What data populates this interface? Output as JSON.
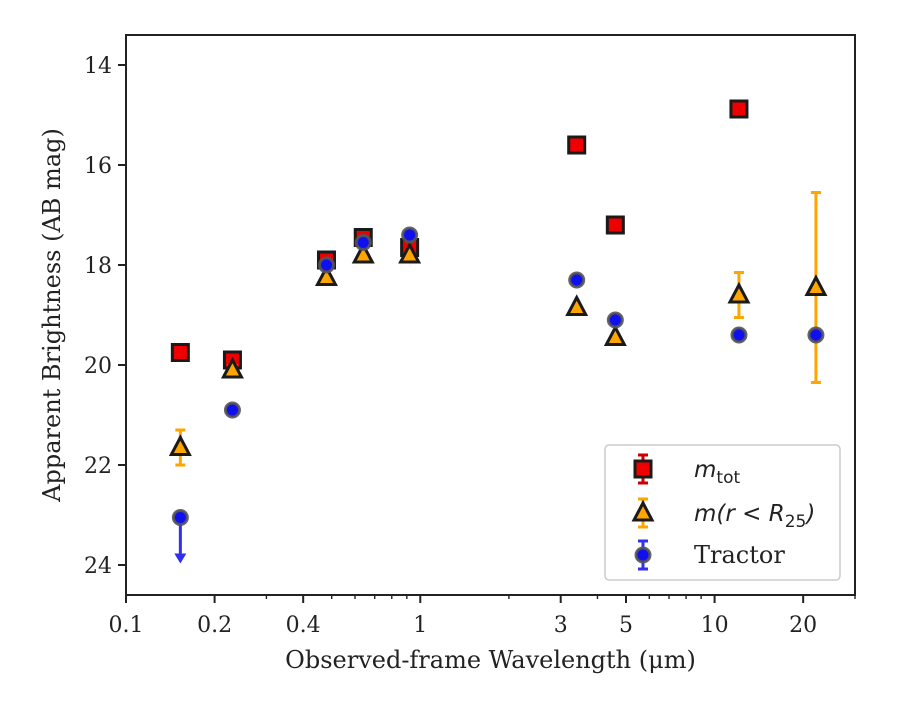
{
  "chart_data": {
    "type": "scatter",
    "xlabel": "Observed-frame Wavelength (μm)",
    "ylabel": "Apparent Brightness (AB mag)",
    "xscale": "log",
    "xlim": [
      0.1,
      30
    ],
    "ylim": [
      24.6,
      13.4
    ],
    "y_inverted": true,
    "grid": false,
    "legend_position": "lower-right",
    "x_ticks": [
      0.1,
      0.2,
      0.4,
      1,
      3,
      5,
      10,
      20
    ],
    "x_tick_labels": [
      "0.1",
      "0.2",
      "0.4",
      "1",
      "3",
      "5",
      "10",
      "20"
    ],
    "y_ticks": [
      14,
      16,
      18,
      20,
      22,
      24
    ],
    "y_tick_labels": [
      "14",
      "16",
      "18",
      "20",
      "22",
      "24"
    ],
    "series": [
      {
        "name": "m_tot",
        "legend_label": {
          "base": "m",
          "sub": "tot"
        },
        "marker": "square",
        "color": "#ee0000",
        "error_color": "#cc0000",
        "points": [
          {
            "x": 0.153,
            "y": 19.75,
            "err": 0.06
          },
          {
            "x": 0.23,
            "y": 19.9,
            "err": 0.06
          },
          {
            "x": 0.48,
            "y": 17.9,
            "err": 0.06
          },
          {
            "x": 0.64,
            "y": 17.45,
            "err": 0.06
          },
          {
            "x": 0.92,
            "y": 17.65,
            "err": 0.06
          },
          {
            "x": 3.4,
            "y": 15.6,
            "err": 0.05
          },
          {
            "x": 4.6,
            "y": 17.2,
            "err": 0.05
          },
          {
            "x": 12.1,
            "y": 14.88,
            "err": 0.05
          }
        ]
      },
      {
        "name": "m(r < R_25)",
        "legend_label": {
          "base": "m(r < R",
          "sub": "25",
          "tail": ")"
        },
        "marker": "triangle",
        "color": "#ffa500",
        "error_color": "#ffa500",
        "points": [
          {
            "x": 0.153,
            "y": 21.65,
            "err": 0.35
          },
          {
            "x": 0.23,
            "y": 20.1,
            "err": 0.08
          },
          {
            "x": 0.48,
            "y": 18.25,
            "err": 0.05
          },
          {
            "x": 0.64,
            "y": 17.8,
            "err": 0.05
          },
          {
            "x": 0.92,
            "y": 17.8,
            "err": 0.05
          },
          {
            "x": 3.4,
            "y": 18.85,
            "err": 0.05
          },
          {
            "x": 4.6,
            "y": 19.45,
            "err": 0.05
          },
          {
            "x": 12.1,
            "y": 18.6,
            "err": 0.45
          },
          {
            "x": 22.1,
            "y": 18.45,
            "err": 1.9
          }
        ]
      },
      {
        "name": "Tractor",
        "legend_label": {
          "base": "Tractor"
        },
        "marker": "circle",
        "color": "#1010ee",
        "error_color": "#3030ee",
        "points": [
          {
            "x": 0.153,
            "y": 23.05,
            "err": 0,
            "upper_limit": true
          },
          {
            "x": 0.23,
            "y": 20.9,
            "err": 0.05
          },
          {
            "x": 0.48,
            "y": 18.0,
            "err": 0.05
          },
          {
            "x": 0.64,
            "y": 17.55,
            "err": 0.05
          },
          {
            "x": 0.92,
            "y": 17.4,
            "err": 0.05
          },
          {
            "x": 3.4,
            "y": 18.3,
            "err": 0.05
          },
          {
            "x": 4.6,
            "y": 19.1,
            "err": 0.05
          },
          {
            "x": 12.1,
            "y": 19.4,
            "err": 0.05
          },
          {
            "x": 22.1,
            "y": 19.4,
            "err": 0.07
          }
        ]
      }
    ]
  }
}
